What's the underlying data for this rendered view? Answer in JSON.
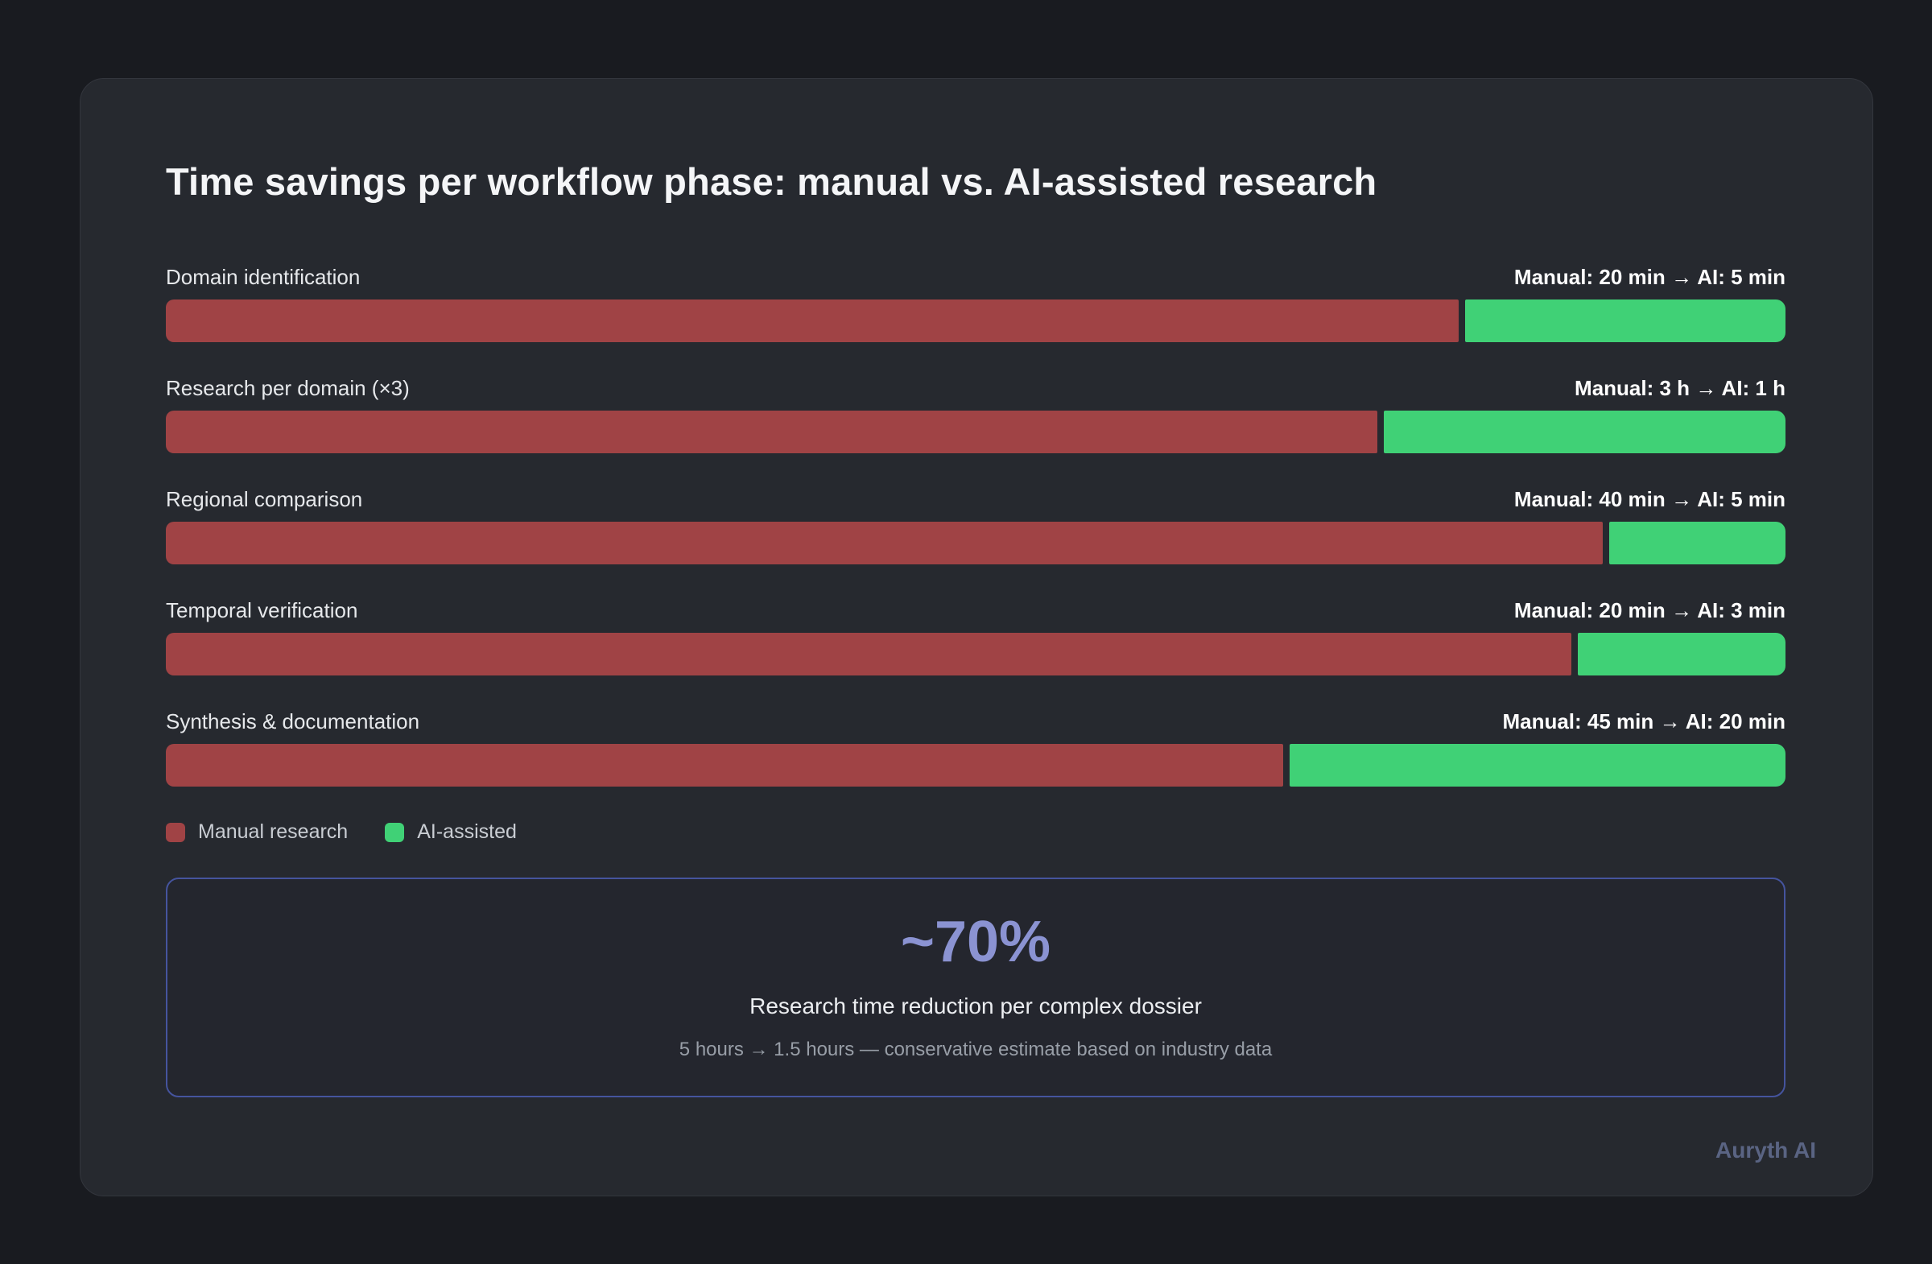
{
  "colors": {
    "page_background": "#191b20",
    "card_background": "#26292f",
    "manual_bar": "#a04345",
    "ai_bar": "#40d176",
    "stat_border": "#45549e",
    "stat_headline": "#8b93d2",
    "brand_text": "#5a6483"
  },
  "chart_data": {
    "type": "bar",
    "orientation": "horizontal-stacked-proportional",
    "title": "Time savings per workflow phase: manual vs. AI-assisted research",
    "categories": [
      "Domain identification",
      "Research per domain (×3)",
      "Regional comparison",
      "Temporal verification",
      "Synthesis & documentation"
    ],
    "series": [
      {
        "name": "Manual research",
        "color": "#a04345",
        "values_minutes": [
          20,
          180,
          40,
          20,
          45
        ]
      },
      {
        "name": "AI-assisted",
        "color": "#40d176",
        "values_minutes": [
          5,
          60,
          5,
          3,
          20
        ]
      }
    ],
    "rows": [
      {
        "label": "Domain identification",
        "value_text": "Manual: 20 min → AI: 5 min",
        "manual_pct": 80.0,
        "ai_pct": 20.0
      },
      {
        "label": "Research per domain (×3)",
        "value_text": "Manual: 3 h → AI: 1 h",
        "manual_pct": 75.0,
        "ai_pct": 25.0
      },
      {
        "label": "Regional comparison",
        "value_text": "Manual: 40 min → AI: 5 min",
        "manual_pct": 88.9,
        "ai_pct": 11.1
      },
      {
        "label": "Temporal verification",
        "value_text": "Manual: 20 min → AI: 3 min",
        "manual_pct": 87.0,
        "ai_pct": 13.0
      },
      {
        "label": "Synthesis & documentation",
        "value_text": "Manual: 45 min → AI: 20 min",
        "manual_pct": 69.2,
        "ai_pct": 30.8
      }
    ],
    "legend": [
      {
        "label": "Manual research",
        "color": "#a04345"
      },
      {
        "label": "AI-assisted",
        "color": "#40d176"
      }
    ]
  },
  "summary": {
    "headline": "~70%",
    "subtitle": "Research time reduction per complex dossier",
    "caption": "5 hours → 1.5 hours — conservative estimate based on industry data"
  },
  "footer": {
    "brand": "Auryth AI"
  }
}
